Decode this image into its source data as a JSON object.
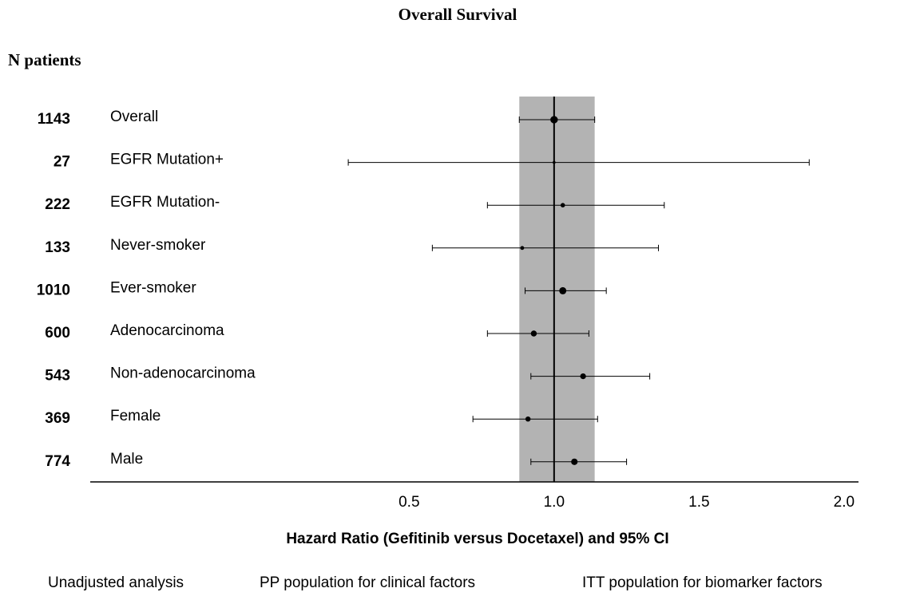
{
  "chart_data": {
    "type": "forest",
    "title": "Overall Survival",
    "row_header": "N patients",
    "xlabel": "Hazard Ratio (Gefitinib versus Docetaxel) and 95% CI",
    "categories": [
      "Overall",
      "EGFR Mutation+",
      "EGFR Mutation-",
      "Never-smoker",
      "Ever-smoker",
      "Adenocarcinoma",
      "Non-adenocarcinoma",
      "Female",
      "Male"
    ],
    "n": [
      1143,
      27,
      222,
      133,
      1010,
      600,
      543,
      369,
      774
    ],
    "estimate": [
      1.0,
      1.0,
      1.03,
      0.89,
      1.03,
      0.93,
      1.1,
      0.91,
      1.07
    ],
    "lower": [
      0.88,
      0.29,
      0.77,
      0.58,
      0.9,
      0.77,
      0.92,
      0.72,
      0.92
    ],
    "upper": [
      1.14,
      1.88,
      1.38,
      1.36,
      1.18,
      1.12,
      1.33,
      1.15,
      1.25
    ],
    "xlim": [
      -0.6,
      2.05
    ],
    "xticks": [
      0.5,
      {
        "value": 1,
        "label": "1.0"
      },
      1.5,
      {
        "value": 2,
        "label": "2.0"
      }
    ],
    "reference": 1,
    "band": [
      0.88,
      1.14
    ],
    "band_color": "#b3b3b3",
    "color": "#000000",
    "footnotes": [
      "Unadjusted analysis",
      "PP population for clinical factors",
      "ITT population for biomarker factors"
    ]
  }
}
